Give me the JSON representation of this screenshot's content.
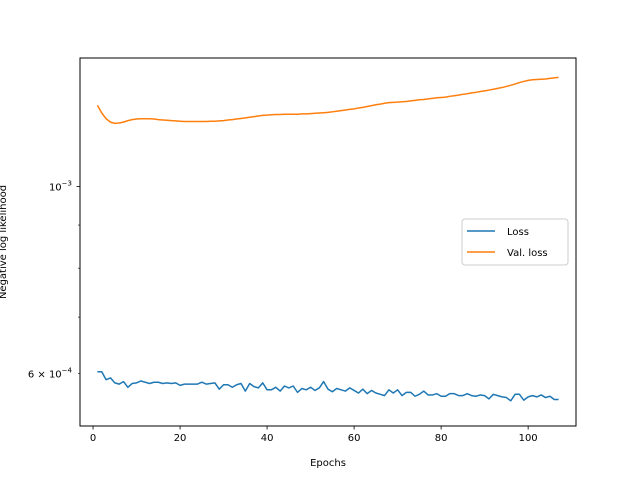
{
  "chart_data": {
    "type": "line",
    "title": "",
    "xlabel": "Epochs",
    "ylabel": "Negative log likelihood",
    "yscale": "log",
    "xlim": [
      -3,
      111
    ],
    "ylim": [
      0.00052,
      0.00142
    ],
    "xticks": [
      0,
      20,
      40,
      60,
      80,
      100
    ],
    "xtick_labels": [
      "0",
      "20",
      "40",
      "60",
      "80",
      "100"
    ],
    "yticks_major": [
      0.001
    ],
    "ytick_major_labels": [
      "10^{-3}"
    ],
    "yticks_minor": [
      0.0006
    ],
    "ytick_minor_labels": [
      "6 × 10^{-4}"
    ],
    "yticks_minor_unlabeled": [
      0.0007,
      0.0008,
      0.0009,
      0.0005
    ],
    "grid": false,
    "legend": "center-right",
    "series": [
      {
        "name": "Loss",
        "color": "#1f77b4",
        "x": [
          1,
          2,
          3,
          4,
          5,
          6,
          7,
          8,
          9,
          10,
          11,
          12,
          13,
          14,
          15,
          16,
          17,
          18,
          19,
          20,
          21,
          22,
          23,
          24,
          25,
          26,
          27,
          28,
          29,
          30,
          31,
          32,
          33,
          34,
          35,
          36,
          37,
          38,
          39,
          40,
          41,
          42,
          43,
          44,
          45,
          46,
          47,
          48,
          49,
          50,
          51,
          52,
          53,
          54,
          55,
          56,
          57,
          58,
          59,
          60,
          61,
          62,
          63,
          64,
          65,
          66,
          67,
          68,
          69,
          70,
          71,
          72,
          73,
          74,
          75,
          76,
          77,
          78,
          79,
          80,
          81,
          82,
          83,
          84,
          85,
          86,
          87,
          88,
          89,
          90,
          91,
          92,
          93,
          94,
          95,
          96,
          97,
          98,
          99,
          100,
          101,
          102,
          103,
          104,
          105,
          106,
          107
        ],
        "values": [
          0.000603,
          0.000603,
          0.00059,
          0.000593,
          0.000585,
          0.000583,
          0.000587,
          0.000578,
          0.000584,
          0.000585,
          0.000588,
          0.000586,
          0.000584,
          0.000586,
          0.000586,
          0.000584,
          0.000585,
          0.000584,
          0.000585,
          0.000581,
          0.000583,
          0.000583,
          0.000583,
          0.000583,
          0.000586,
          0.000583,
          0.000584,
          0.000585,
          0.000575,
          0.000582,
          0.000582,
          0.000578,
          0.000582,
          0.000584,
          0.000572,
          0.000584,
          0.000579,
          0.000577,
          0.000585,
          0.000574,
          0.000574,
          0.000578,
          0.000572,
          0.00058,
          0.000577,
          0.00058,
          0.00057,
          0.000576,
          0.000574,
          0.000578,
          0.000573,
          0.000577,
          0.000587,
          0.000575,
          0.000571,
          0.000576,
          0.000574,
          0.000572,
          0.000577,
          0.000573,
          0.000569,
          0.000575,
          0.000568,
          0.000573,
          0.000569,
          0.000567,
          0.000565,
          0.000574,
          0.000569,
          0.000574,
          0.000565,
          0.00057,
          0.00057,
          0.000564,
          0.000567,
          0.000572,
          0.000566,
          0.000566,
          0.000568,
          0.000564,
          0.000564,
          0.000568,
          0.000568,
          0.000565,
          0.000565,
          0.000568,
          0.000565,
          0.000564,
          0.000566,
          0.000565,
          0.00056,
          0.000567,
          0.000565,
          0.000563,
          0.000562,
          0.000557,
          0.000567,
          0.000567,
          0.000558,
          0.000563,
          0.000565,
          0.000563,
          0.000566,
          0.000562,
          0.000564,
          0.000559,
          0.000559
        ]
      },
      {
        "name": "Val. loss",
        "color": "#ff7f0e",
        "x": [
          1,
          2,
          3,
          4,
          5,
          6,
          7,
          8,
          9,
          10,
          11,
          12,
          13,
          14,
          15,
          16,
          17,
          18,
          19,
          20,
          21,
          22,
          23,
          24,
          25,
          26,
          27,
          28,
          29,
          30,
          31,
          32,
          33,
          34,
          35,
          36,
          37,
          38,
          39,
          40,
          41,
          42,
          43,
          44,
          45,
          46,
          47,
          48,
          49,
          50,
          51,
          52,
          53,
          54,
          55,
          56,
          57,
          58,
          59,
          60,
          61,
          62,
          63,
          64,
          65,
          66,
          67,
          68,
          69,
          70,
          71,
          72,
          73,
          74,
          75,
          76,
          77,
          78,
          79,
          80,
          81,
          82,
          83,
          84,
          85,
          86,
          87,
          88,
          89,
          90,
          91,
          92,
          93,
          94,
          95,
          96,
          97,
          98,
          99,
          100,
          101,
          102,
          103,
          104,
          105,
          106,
          107
        ],
        "values": [
          0.001248,
          0.001222,
          0.001203,
          0.001192,
          0.001188,
          0.001189,
          0.001192,
          0.001197,
          0.0012,
          0.001202,
          0.001203,
          0.001203,
          0.001203,
          0.001202,
          0.0012,
          0.001199,
          0.001198,
          0.001197,
          0.001196,
          0.001195,
          0.001194,
          0.001194,
          0.001194,
          0.001194,
          0.001194,
          0.001194,
          0.001195,
          0.001195,
          0.001196,
          0.001197,
          0.001199,
          0.0012,
          0.001202,
          0.001204,
          0.001206,
          0.001208,
          0.00121,
          0.001212,
          0.001214,
          0.001215,
          0.001216,
          0.001217,
          0.001217,
          0.001218,
          0.001218,
          0.001218,
          0.001218,
          0.001219,
          0.001219,
          0.00122,
          0.001221,
          0.001222,
          0.001223,
          0.001224,
          0.001226,
          0.001228,
          0.00123,
          0.001232,
          0.001234,
          0.001236,
          0.001239,
          0.001241,
          0.001244,
          0.001247,
          0.00125,
          0.001252,
          0.001255,
          0.001257,
          0.001258,
          0.001259,
          0.00126,
          0.001261,
          0.001263,
          0.001265,
          0.001267,
          0.001268,
          0.00127,
          0.001272,
          0.001274,
          0.001275,
          0.001276,
          0.001279,
          0.001281,
          0.001283,
          0.001286,
          0.001288,
          0.001291,
          0.001293,
          0.001296,
          0.001298,
          0.001301,
          0.001304,
          0.001307,
          0.00131,
          0.001314,
          0.001318,
          0.001323,
          0.001328,
          0.001332,
          0.001336,
          0.001338,
          0.001339,
          0.00134,
          0.001341,
          0.001343,
          0.001345,
          0.001347
        ]
      }
    ]
  }
}
